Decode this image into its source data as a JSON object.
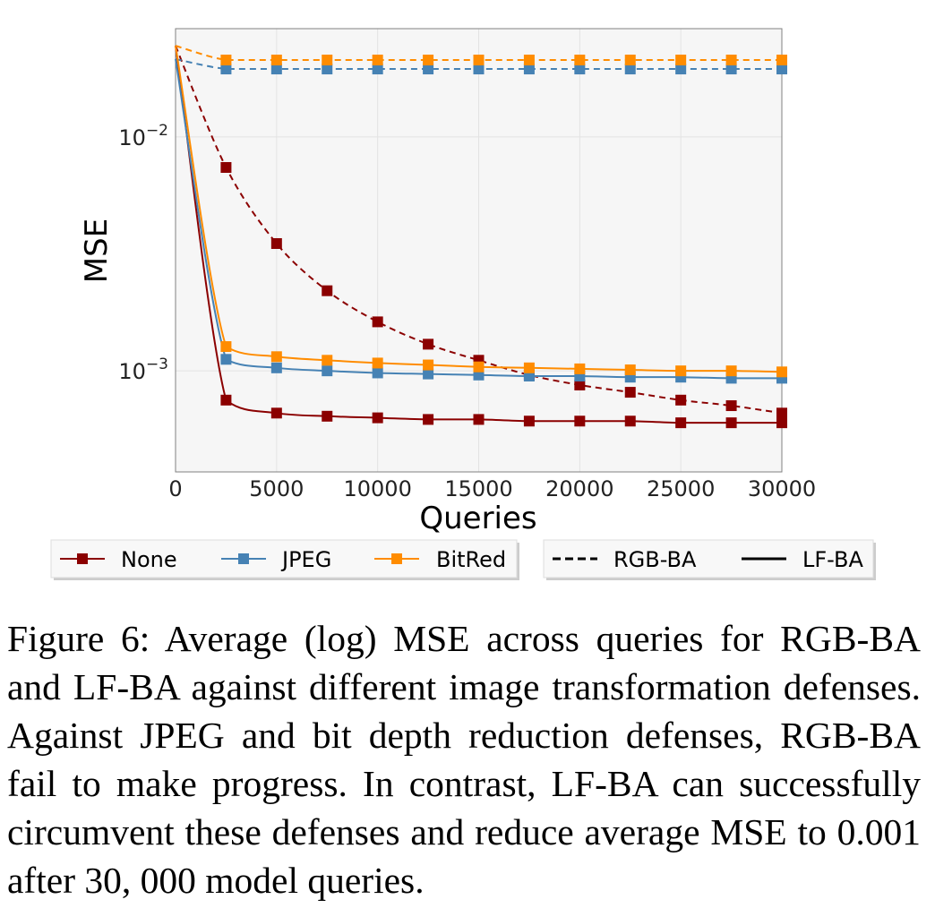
{
  "caption": "Figure 6: Average (log) MSE across queries for RGB-BA and LF-BA against different image transformation defenses. Against JPEG and bit depth reduction defenses, RGB-BA fail to make progress. In contrast, LF-BA can successfully circumvent these defenses and reduce average MSE to 0.001 after 30, 000 model queries.",
  "chart_data": {
    "type": "line",
    "title": "",
    "xlabel": "Queries",
    "ylabel": "MSE",
    "xlim": [
      0,
      30000
    ],
    "ylim": [
      0.00037,
      0.029
    ],
    "yscale": "log",
    "grid": true,
    "xticks": [
      0,
      5000,
      10000,
      15000,
      20000,
      25000,
      30000
    ],
    "xtick_labels": [
      "0",
      "5000",
      "10000",
      "15000",
      "20000",
      "25000",
      "30000"
    ],
    "yticks": [
      0.01,
      0.001
    ],
    "ytick_labels": [
      "10−2",
      "10−3"
    ],
    "colors": {
      "None": "#8b0000",
      "JPEG": "#4682b4",
      "BitRed": "#ff8c00"
    },
    "legend_defenses": [
      "None",
      "JPEG",
      "BitRed"
    ],
    "legend_methods": [
      "RGB-BA",
      "LF-BA"
    ],
    "legend_position": "below",
    "x": [
      0,
      2500,
      5000,
      7500,
      10000,
      12500,
      15000,
      17500,
      20000,
      22500,
      25000,
      27500,
      30000
    ],
    "series": [
      {
        "defense": "None",
        "method": "RGB-BA",
        "style": "dashed",
        "values": [
          0.0245,
          0.0074,
          0.0035,
          0.0022,
          0.00162,
          0.0013,
          0.00111,
          0.00096,
          0.00087,
          0.00081,
          0.00075,
          0.00071,
          0.00066
        ]
      },
      {
        "defense": "JPEG",
        "method": "RGB-BA",
        "style": "dashed",
        "values": [
          0.0215,
          0.0195,
          0.0195,
          0.0195,
          0.0195,
          0.0195,
          0.0195,
          0.0195,
          0.0195,
          0.0195,
          0.0195,
          0.0195,
          0.0195
        ]
      },
      {
        "defense": "BitRed",
        "method": "RGB-BA",
        "style": "dashed",
        "values": [
          0.0245,
          0.0213,
          0.0213,
          0.0213,
          0.0213,
          0.0213,
          0.0213,
          0.0213,
          0.0213,
          0.0213,
          0.0213,
          0.0213,
          0.0213
        ]
      },
      {
        "defense": "None",
        "method": "LF-BA",
        "style": "solid",
        "values": [
          0.0245,
          0.00075,
          0.00066,
          0.00064,
          0.00063,
          0.00062,
          0.00062,
          0.00061,
          0.00061,
          0.00061,
          0.0006,
          0.0006,
          0.0006
        ]
      },
      {
        "defense": "JPEG",
        "method": "LF-BA",
        "style": "solid",
        "values": [
          0.0215,
          0.00112,
          0.00103,
          0.001,
          0.00098,
          0.00097,
          0.00096,
          0.00095,
          0.00095,
          0.00094,
          0.00094,
          0.00093,
          0.00093
        ]
      },
      {
        "defense": "BitRed",
        "method": "LF-BA",
        "style": "solid",
        "values": [
          0.0245,
          0.00127,
          0.00115,
          0.00111,
          0.00108,
          0.00106,
          0.00104,
          0.00103,
          0.00102,
          0.00101,
          0.001,
          0.001,
          0.00099
        ]
      }
    ]
  }
}
